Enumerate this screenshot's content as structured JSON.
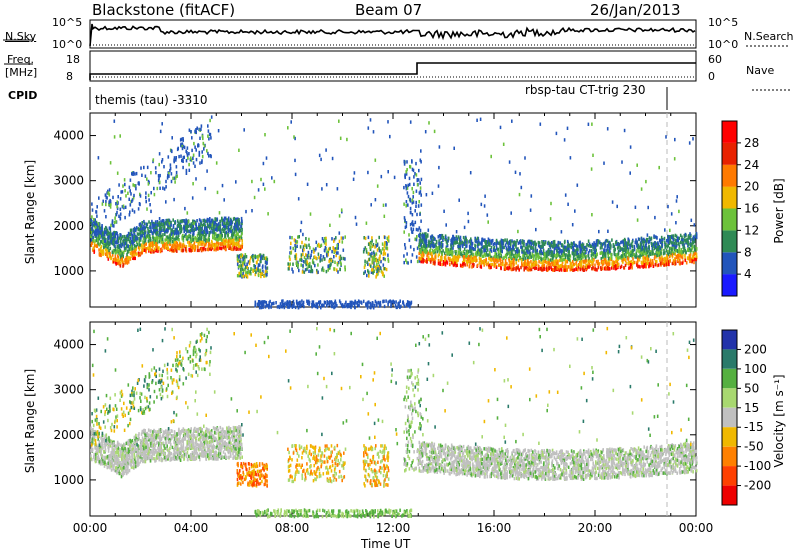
{
  "header": {
    "station": "Blackstone (fitACF)",
    "beam": "Beam 07",
    "date": "26/Jan/2013"
  },
  "status_panel": {
    "left_label_top": "N.Sky",
    "left_ticks_top": [
      "10^5",
      "10^0"
    ],
    "right_ticks_top": [
      "10^5",
      "10^0"
    ],
    "right_label_top": "N.Search",
    "freq_label": "Freq.",
    "freq_unit": "[MHz]",
    "freq_ticks": [
      "18",
      "8"
    ],
    "nave_ticks": [
      "60",
      "0"
    ],
    "nave_label": "Nave",
    "cpid_label": "CPID",
    "cpid_1": "themis (tau) -3310",
    "cpid_2": "rbsp-tau CT-trig 230"
  },
  "chart_data": [
    {
      "type": "heatmap",
      "name": "power",
      "ylabel": "Slant Range [km]",
      "ylim": [
        200,
        4500
      ],
      "yticks": [
        "1000",
        "2000",
        "3000",
        "4000"
      ],
      "xlabel": "",
      "colorbar": {
        "label": "Power [dB]",
        "ticks": [
          "4",
          "8",
          "12",
          "16",
          "20",
          "24",
          "28"
        ],
        "colors": [
          "#1a1aff",
          "#2255bb",
          "#2f8a55",
          "#6cc23a",
          "#f0b800",
          "#ff7a00",
          "#e82200",
          "#ff0000"
        ]
      }
    },
    {
      "type": "heatmap",
      "name": "velocity",
      "ylabel": "Slant Range [km]",
      "ylim": [
        200,
        4500
      ],
      "yticks": [
        "1000",
        "2000",
        "3000",
        "4000"
      ],
      "xlabel": "Time UT",
      "xticks": [
        "00:00",
        "04:00",
        "08:00",
        "12:00",
        "16:00",
        "20:00",
        "00:00"
      ],
      "colorbar": {
        "label": "Velocity [m s⁻¹]",
        "ticks": [
          "200",
          "100",
          "50",
          "15",
          "-15",
          "-50",
          "-100",
          "-200"
        ],
        "colors": [
          "#2233aa",
          "#2a7a6a",
          "#55b040",
          "#a8d870",
          "#c0c0c0",
          "#f0b800",
          "#ff8000",
          "#ff4000",
          "#ee0000"
        ]
      }
    }
  ]
}
